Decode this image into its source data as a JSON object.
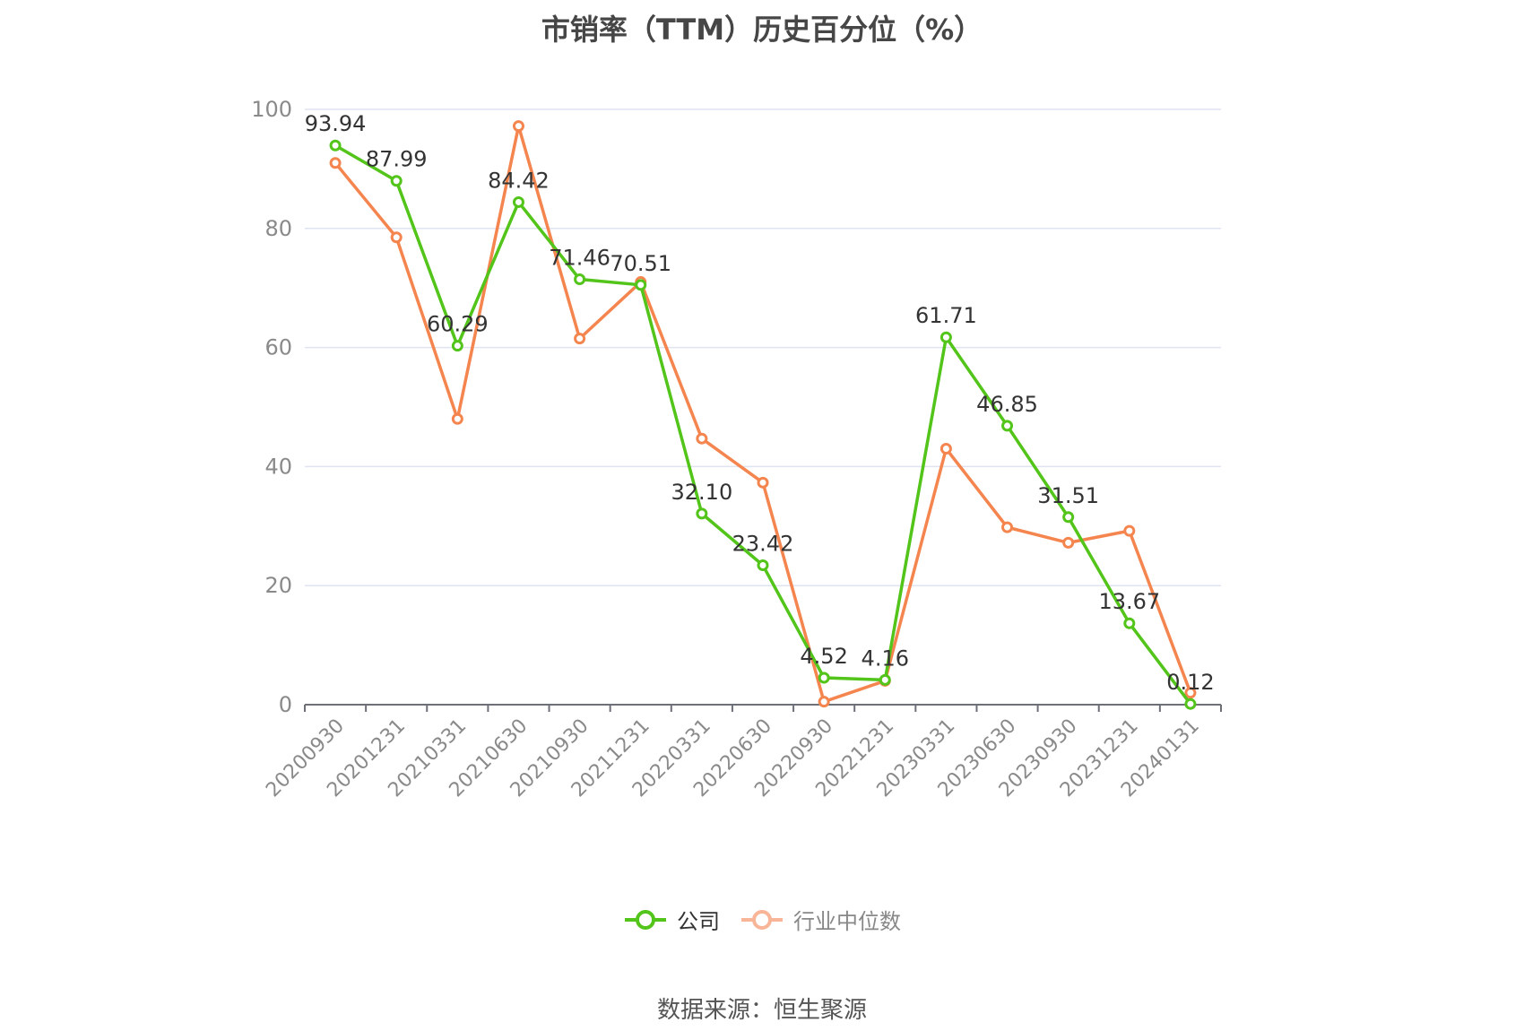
{
  "title": "市销率（TTM）历史百分位（%）",
  "source": "数据来源：恒生聚源",
  "colors": {
    "company": "#52c41a",
    "industry": "#f5854f",
    "grid": "#dfe3f2",
    "axis": "#6e7079",
    "tick": "#8a8a8a",
    "label": "#333333"
  },
  "chart_data": {
    "type": "line",
    "x": [
      "20200930",
      "20201231",
      "20210331",
      "20210630",
      "20210930",
      "20211231",
      "20220331",
      "20220630",
      "20220930",
      "20221231",
      "20230331",
      "20230630",
      "20230930",
      "20231231",
      "20240131"
    ],
    "ylim": [
      0,
      100
    ],
    "yticks": [
      0,
      20,
      40,
      60,
      80,
      100
    ],
    "grid": true,
    "legend_position": "bottom",
    "series": [
      {
        "name": "公司",
        "color": "#52c41a",
        "show_labels": true,
        "values": [
          93.94,
          87.99,
          60.29,
          84.42,
          71.46,
          70.51,
          32.1,
          23.42,
          4.52,
          4.16,
          61.71,
          46.85,
          31.51,
          13.67,
          0.12
        ],
        "labels": [
          "93.94",
          "87.99",
          "60.29",
          "84.42",
          "71.46",
          "70.51",
          "32.10",
          "23.42",
          "4.52",
          "4.16",
          "61.71",
          "46.85",
          "31.51",
          "13.67",
          "0.12"
        ]
      },
      {
        "name": "行业中位数",
        "color": "#f5854f",
        "show_labels": false,
        "values": [
          91,
          78.5,
          48,
          97.2,
          61.5,
          71,
          44.7,
          37.3,
          0.5,
          4,
          43,
          29.8,
          27.2,
          29.2,
          2
        ]
      }
    ]
  }
}
